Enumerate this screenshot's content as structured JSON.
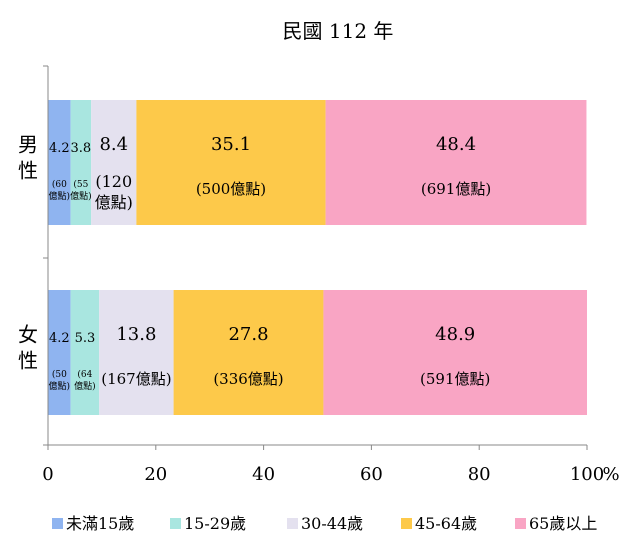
{
  "chart_data": {
    "type": "bar",
    "stacked": true,
    "orientation": "horizontal",
    "title": "民國 112 年",
    "categories": [
      "男性",
      "女性"
    ],
    "series": [
      {
        "name": "未滿15歲",
        "color": "#8fb4f0",
        "values": [
          4.2,
          4.2
        ],
        "value_labels": [
          "4.2",
          "4.2"
        ],
        "amount_labels": [
          "(60億點)",
          "(50億點)"
        ]
      },
      {
        "name": "15-29歲",
        "color": "#a9e6e0",
        "values": [
          3.8,
          5.3
        ],
        "value_labels": [
          "3.8",
          "5.3"
        ],
        "amount_labels": [
          "(55億點)",
          "(64億點)"
        ]
      },
      {
        "name": "30-44歲",
        "color": "#e4e1ef",
        "values": [
          8.4,
          13.8
        ],
        "value_labels": [
          "8.4",
          "13.8"
        ],
        "amount_labels": [
          "(120億點)",
          "(167億點)"
        ]
      },
      {
        "name": "45-64歲",
        "color": "#fdc94a",
        "values": [
          35.1,
          27.8
        ],
        "value_labels": [
          "35.1",
          "27.8"
        ],
        "amount_labels": [
          "(500億點)",
          "(336億點)"
        ]
      },
      {
        "name": "65歲以上",
        "color": "#f9a5c4",
        "values": [
          48.4,
          48.9
        ],
        "value_labels": [
          "48.4",
          "48.9"
        ],
        "amount_labels": [
          "(691億點)",
          "(591億點)"
        ]
      }
    ],
    "xlim": [
      0,
      100
    ],
    "xticks": [
      "0",
      "20",
      "40",
      "60",
      "80",
      "100"
    ],
    "x_unit": "%",
    "legend_position": "bottom",
    "grid": false
  }
}
